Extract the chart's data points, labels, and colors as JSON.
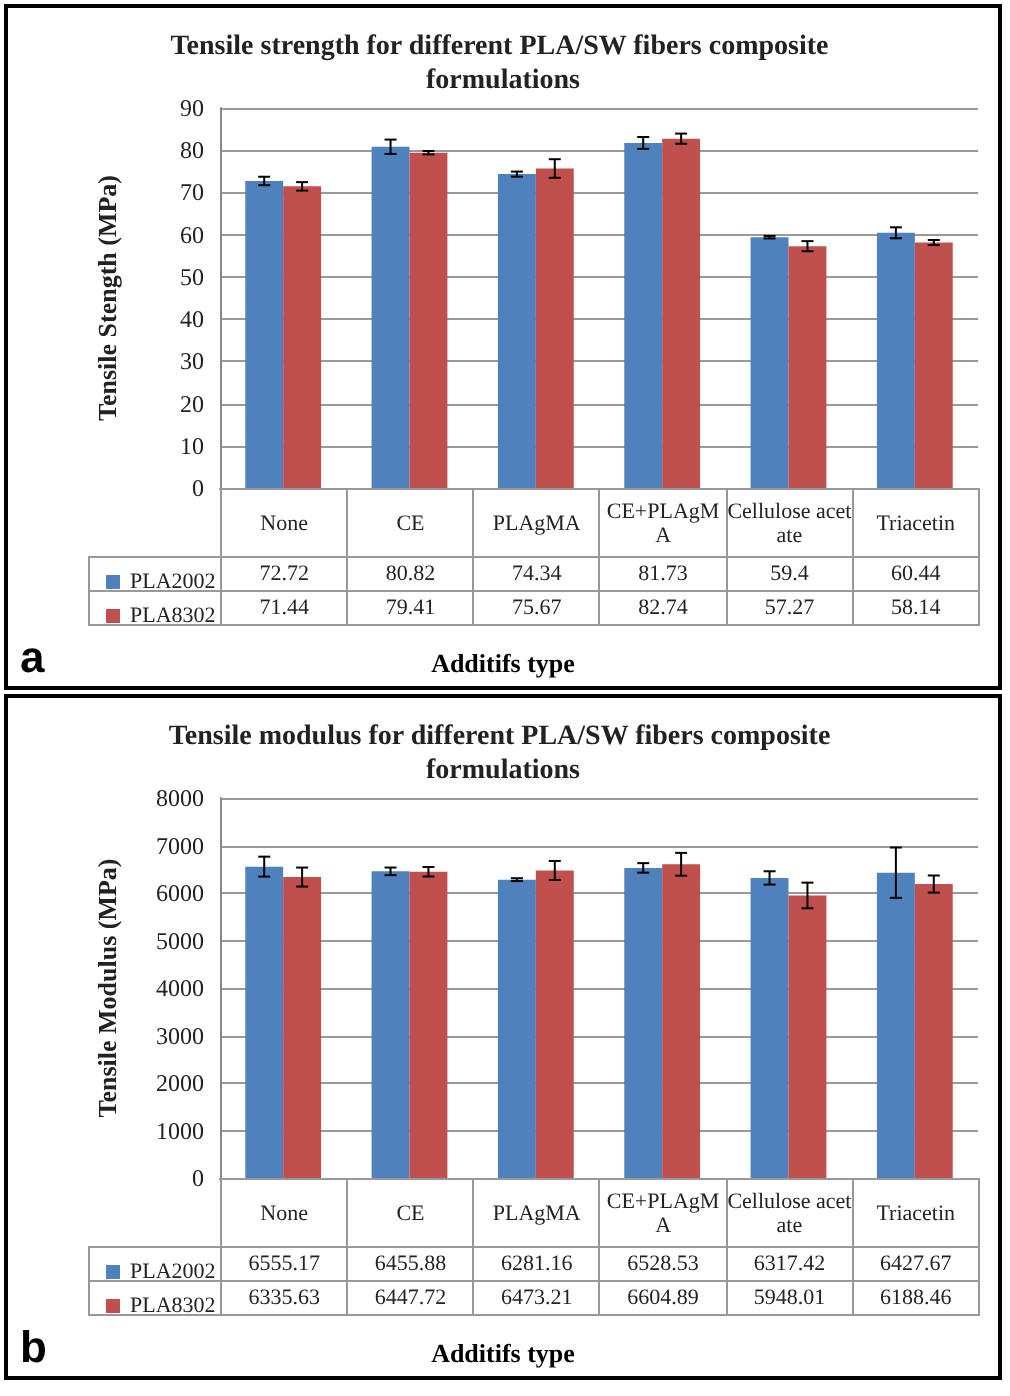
{
  "chart_data": [
    {
      "type": "bar",
      "title": "Tensile strength for different PLA/SW fibers composite formulations",
      "xlabel": "Additifs type",
      "ylabel": "Tensile Stength (MPa)",
      "annotations": [
        "a"
      ],
      "categories": [
        "None",
        "CE",
        "PLAgMA",
        "CE+PLAgMA",
        "Cellulose acetate",
        "Triacetin"
      ],
      "series": [
        {
          "name": "PLA2002",
          "color": "#4f81bd",
          "values": [
            72.72,
            80.82,
            74.34,
            81.73,
            59.4,
            60.44
          ],
          "errors": [
            1,
            1.7,
            0.6,
            1.4,
            0.3,
            1.3
          ]
        },
        {
          "name": "PLA8302",
          "color": "#c0504d",
          "values": [
            71.44,
            79.41,
            75.67,
            82.74,
            57.27,
            58.14
          ],
          "errors": [
            1,
            0.4,
            2.2,
            1.2,
            1.2,
            0.6
          ]
        }
      ],
      "ylim": [
        0,
        90
      ],
      "yticks": [
        0,
        10,
        20,
        30,
        40,
        50,
        60,
        70,
        80,
        90
      ],
      "grid": "y",
      "legend": "bottom left",
      "data_labels": true
    },
    {
      "type": "bar",
      "title": "Tensile modulus for different PLA/SW fibers composite formulations",
      "xlabel": "Additifs type",
      "ylabel": "Tensile Modulus (MPa)",
      "annotations": [
        "b"
      ],
      "categories": [
        "None",
        "CE",
        "PLAgMA",
        "CE+PLAgMA",
        "Cellulose acetate",
        "Triacetin"
      ],
      "series": [
        {
          "name": "PLA2002",
          "color": "#4f81bd",
          "values": [
            6555.17,
            6455.88,
            6281.16,
            6528.53,
            6317.42,
            6427.67
          ],
          "errors": [
            210,
            80,
            30,
            100,
            140,
            530
          ]
        },
        {
          "name": "PLA8302",
          "color": "#c0504d",
          "values": [
            6335.63,
            6447.72,
            6473.21,
            6604.89,
            5948.01,
            6188.46
          ],
          "errors": [
            200,
            100,
            200,
            240,
            270,
            180
          ]
        }
      ],
      "ylim": [
        0,
        8000
      ],
      "yticks": [
        0,
        1000,
        2000,
        3000,
        4000,
        5000,
        6000,
        7000,
        8000
      ],
      "grid": "y",
      "legend": "bottom left",
      "data_labels": true
    }
  ]
}
